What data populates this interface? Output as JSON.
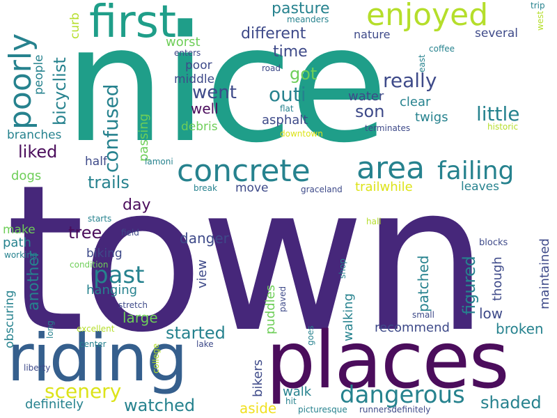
{
  "palette": {
    "purple": "#46277a",
    "dark_purple": "#4b0d5c",
    "indigo": "#3e4a89",
    "blue": "#355f8d",
    "teal": "#26828e",
    "teal_dark": "#2a788e",
    "green_teal": "#1f9e89",
    "green": "#35b779",
    "light_green": "#6ece58",
    "lime": "#b5de2b",
    "yellow": "#dce319",
    "bright_yellow": "#f0e020"
  },
  "words": [
    {
      "text": "town",
      "color": "#46277a"
    },
    {
      "text": "nice",
      "color": "#1f9e89"
    },
    {
      "text": "places",
      "color": "#4b0d5c"
    },
    {
      "text": "riding",
      "color": "#355f8d"
    },
    {
      "text": "first",
      "color": "#1f9e89"
    },
    {
      "text": "enjoyed",
      "color": "#b5de2b"
    },
    {
      "text": "concrete",
      "color": "#26828e"
    },
    {
      "text": "area",
      "color": "#26828e"
    },
    {
      "text": "failing",
      "color": "#26828e"
    },
    {
      "text": "poorly",
      "color": "#26828e"
    },
    {
      "text": "dangerous",
      "color": "#26828e"
    },
    {
      "text": "pasture",
      "color": "#26828e"
    },
    {
      "text": "different",
      "color": "#3e4a89"
    },
    {
      "text": "time",
      "color": "#3e4a89"
    },
    {
      "text": "nature",
      "color": "#3e4a89"
    },
    {
      "text": "several",
      "color": "#3e4a89"
    },
    {
      "text": "worst",
      "color": "#6ece58"
    },
    {
      "text": "got",
      "color": "#6ece58"
    },
    {
      "text": "really",
      "color": "#3e4a89"
    },
    {
      "text": "went",
      "color": "#3e4a89"
    },
    {
      "text": "outi",
      "color": "#26828e"
    },
    {
      "text": "poor",
      "color": "#3e4a89"
    },
    {
      "text": "middle",
      "color": "#3e4a89"
    },
    {
      "text": "well",
      "color": "#4b0d5c"
    },
    {
      "text": "water",
      "color": "#3e4a89"
    },
    {
      "text": "son",
      "color": "#3e4a89"
    },
    {
      "text": "clear",
      "color": "#26828e"
    },
    {
      "text": "little",
      "color": "#26828e"
    },
    {
      "text": "twigs",
      "color": "#26828e"
    },
    {
      "text": "asphalt",
      "color": "#3e4a89"
    },
    {
      "text": "bicyclist",
      "color": "#26828e"
    },
    {
      "text": "confused",
      "color": "#26828e"
    },
    {
      "text": "passing",
      "color": "#6ece58"
    },
    {
      "text": "debris",
      "color": "#6ece58"
    },
    {
      "text": "branches",
      "color": "#26828e"
    },
    {
      "text": "liked",
      "color": "#4b0d5c"
    },
    {
      "text": "dogs",
      "color": "#6ece58"
    },
    {
      "text": "trails",
      "color": "#26828e"
    },
    {
      "text": "half",
      "color": "#3e4a89"
    },
    {
      "text": "day",
      "color": "#4b0d5c"
    },
    {
      "text": "move",
      "color": "#3e4a89"
    },
    {
      "text": "trailwhile",
      "color": "#dce319"
    },
    {
      "text": "leaves",
      "color": "#26828e"
    },
    {
      "text": "past",
      "color": "#26828e"
    },
    {
      "text": "tree",
      "color": "#4b0d5c"
    },
    {
      "text": "make",
      "color": "#6ece58"
    },
    {
      "text": "path",
      "color": "#26828e"
    },
    {
      "text": "another",
      "color": "#26828e"
    },
    {
      "text": "biking",
      "color": "#3e4a89"
    },
    {
      "text": "hanging",
      "color": "#26828e"
    },
    {
      "text": "danger",
      "color": "#3e4a89"
    },
    {
      "text": "view",
      "color": "#3e4a89"
    },
    {
      "text": "figured",
      "color": "#26828e"
    },
    {
      "text": "patched",
      "color": "#26828e"
    },
    {
      "text": "though",
      "color": "#3e4a89"
    },
    {
      "text": "maintained",
      "color": "#3e4a89"
    },
    {
      "text": "low",
      "color": "#3e4a89"
    },
    {
      "text": "blocks",
      "color": "#3e4a89"
    },
    {
      "text": "large",
      "color": "#6ece58"
    },
    {
      "text": "obscuring",
      "color": "#26828e"
    },
    {
      "text": "started",
      "color": "#26828e"
    },
    {
      "text": "recommend",
      "color": "#3e4a89"
    },
    {
      "text": "broken",
      "color": "#26828e"
    },
    {
      "text": "puddles",
      "color": "#6ece58"
    },
    {
      "text": "walking",
      "color": "#26828e"
    },
    {
      "text": "bikers",
      "color": "#3e4a89"
    },
    {
      "text": "walk",
      "color": "#26828e"
    },
    {
      "text": "scenery",
      "color": "#dce319"
    },
    {
      "text": "watched",
      "color": "#26828e"
    },
    {
      "text": "definitely",
      "color": "#26828e"
    },
    {
      "text": "aside",
      "color": "#f0e020"
    },
    {
      "text": "shaded",
      "color": "#26828e"
    },
    {
      "text": "people",
      "color": "#26828e"
    },
    {
      "text": "curb",
      "color": "#b5de2b"
    },
    {
      "text": "meanders",
      "color": "#26828e"
    },
    {
      "text": "trip",
      "color": "#26828e"
    },
    {
      "text": "west",
      "color": "#b5de2b"
    },
    {
      "text": "coffee",
      "color": "#26828e"
    },
    {
      "text": "east",
      "color": "#26828e"
    },
    {
      "text": "enters",
      "color": "#3e4a89"
    },
    {
      "text": "road",
      "color": "#3e4a89"
    },
    {
      "text": "flat",
      "color": "#26828e"
    },
    {
      "text": "downtown",
      "color": "#dce319"
    },
    {
      "text": "terminates",
      "color": "#3e4a89"
    },
    {
      "text": "historic",
      "color": "#b5de2b"
    },
    {
      "text": "lamoni",
      "color": "#26828e"
    },
    {
      "text": "break",
      "color": "#26828e"
    },
    {
      "text": "graceland",
      "color": "#3e4a89"
    },
    {
      "text": "starts",
      "color": "#26828e"
    },
    {
      "text": "field",
      "color": "#3e4a89"
    },
    {
      "text": "hall",
      "color": "#b5de2b"
    },
    {
      "text": "working",
      "color": "#26828e"
    },
    {
      "text": "condition",
      "color": "#6ece58"
    },
    {
      "text": "shop",
      "color": "#26828e"
    },
    {
      "text": "paved",
      "color": "#3e4a89"
    },
    {
      "text": "stretch",
      "color": "#3e4a89"
    },
    {
      "text": "small",
      "color": "#3e4a89"
    },
    {
      "text": "excellent",
      "color": "#b5de2b"
    },
    {
      "text": "long",
      "color": "#26828e"
    },
    {
      "text": "center",
      "color": "#26828e"
    },
    {
      "text": "college",
      "color": "#b5de2b"
    },
    {
      "text": "lake",
      "color": "#3e4a89"
    },
    {
      "text": "goes",
      "color": "#26828e"
    },
    {
      "text": "liberty",
      "color": "#3e4a89"
    },
    {
      "text": "hit",
      "color": "#26828e"
    },
    {
      "text": "picturesque",
      "color": "#26828e"
    },
    {
      "text": "runnersdefinitely",
      "color": "#3e4a89"
    }
  ]
}
